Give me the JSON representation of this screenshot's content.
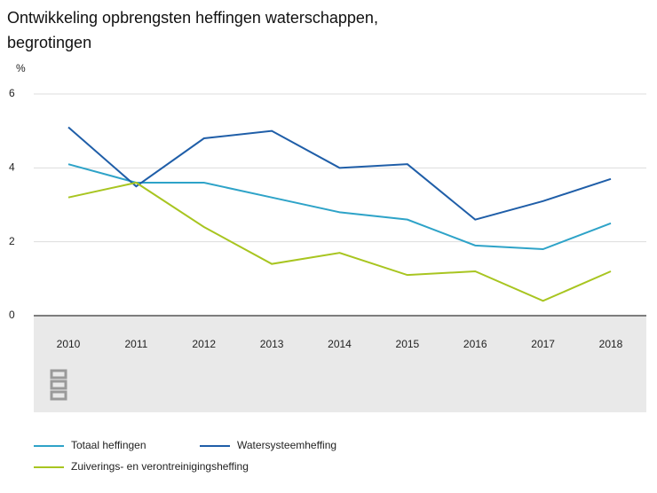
{
  "chart_data": {
    "type": "line",
    "title": "Ontwikkeling opbrengsten heffingen waterschappen, begrotingen",
    "y_label": "%",
    "categories": [
      "2010",
      "2011",
      "2012",
      "2013",
      "2014",
      "2015",
      "2016",
      "2017",
      "2018"
    ],
    "series": [
      {
        "name": "Totaal heffingen",
        "color": "#2ea3c8",
        "values": [
          4.1,
          3.6,
          3.6,
          3.2,
          2.8,
          2.6,
          1.9,
          1.8,
          2.5
        ]
      },
      {
        "name": "Watersysteemheffing",
        "color": "#1f5ea8",
        "values": [
          5.1,
          3.5,
          4.8,
          5.0,
          4.0,
          4.1,
          2.6,
          3.1,
          3.7
        ]
      },
      {
        "name": "Zuiverings- en verontreinigingsheffing",
        "color": "#a8c520",
        "values": [
          3.2,
          3.6,
          2.4,
          1.4,
          1.7,
          1.1,
          1.2,
          0.4,
          1.2
        ]
      }
    ],
    "ylim": [
      0,
      6
    ],
    "yticks": [
      0,
      2,
      4,
      6
    ],
    "grid": true
  }
}
